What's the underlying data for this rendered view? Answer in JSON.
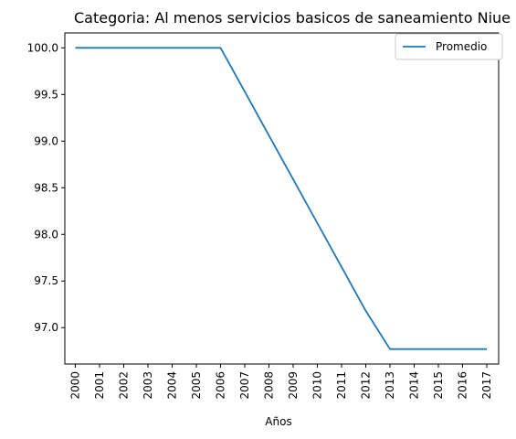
{
  "chart_data": {
    "type": "line",
    "title": "Categoria: Al menos servicios basicos de saneamiento Niue",
    "xlabel": "Años",
    "ylabel": "",
    "categories": [
      "2000",
      "2001",
      "2002",
      "2003",
      "2004",
      "2005",
      "2006",
      "2007",
      "2008",
      "2009",
      "2010",
      "2011",
      "2012",
      "2013",
      "2014",
      "2015",
      "2016",
      "2017"
    ],
    "series": [
      {
        "name": "Promedio",
        "values": [
          100.0,
          100.0,
          100.0,
          100.0,
          100.0,
          100.0,
          100.0,
          99.53,
          99.06,
          98.59,
          98.12,
          97.65,
          97.18,
          96.77,
          96.77,
          96.77,
          96.77,
          96.77
        ]
      }
    ],
    "yticks": [
      97.0,
      97.5,
      98.0,
      98.5,
      99.0,
      99.5,
      100.0
    ],
    "ylim": [
      96.61,
      100.16
    ],
    "grid": false,
    "legend": "top-right",
    "colors": {
      "series": "#1f77b4",
      "axis": "#000000"
    }
  }
}
